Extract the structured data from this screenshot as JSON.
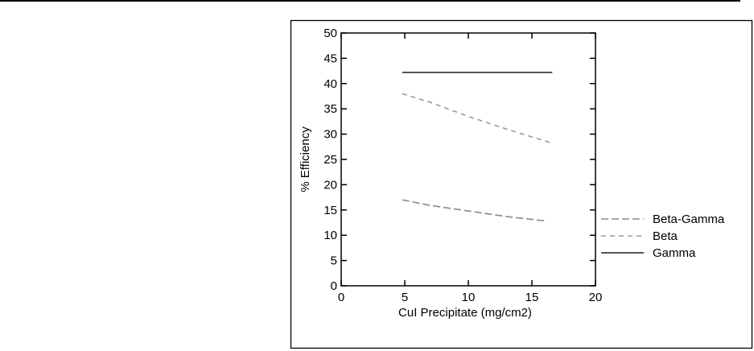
{
  "chart_data": {
    "type": "line",
    "title": "",
    "xlabel": "CuI Precipitate (mg/cm2)",
    "ylabel": "% Efficiency",
    "xlim": [
      0,
      20
    ],
    "ylim": [
      0,
      50
    ],
    "xticks": [
      0,
      5,
      10,
      15,
      20
    ],
    "yticks": [
      0,
      5,
      10,
      15,
      20,
      25,
      30,
      35,
      40,
      45,
      50
    ],
    "grid": false,
    "legend_position": "right",
    "series": [
      {
        "name": "Beta-Gamma",
        "style": "long-dash",
        "color": "#8a8a8a",
        "x": [
          4.8,
          7,
          10,
          13,
          16.2
        ],
        "y": [
          17.0,
          15.9,
          14.8,
          13.7,
          12.8
        ]
      },
      {
        "name": "Beta",
        "style": "short-dash",
        "color": "#9a9a9a",
        "x": [
          4.8,
          7,
          10,
          13,
          16.6
        ],
        "y": [
          38.0,
          36.3,
          33.5,
          31.0,
          28.2
        ]
      },
      {
        "name": "Gamma",
        "style": "solid",
        "color": "#555555",
        "x": [
          4.8,
          16.6
        ],
        "y": [
          42.2,
          42.2
        ]
      }
    ]
  }
}
